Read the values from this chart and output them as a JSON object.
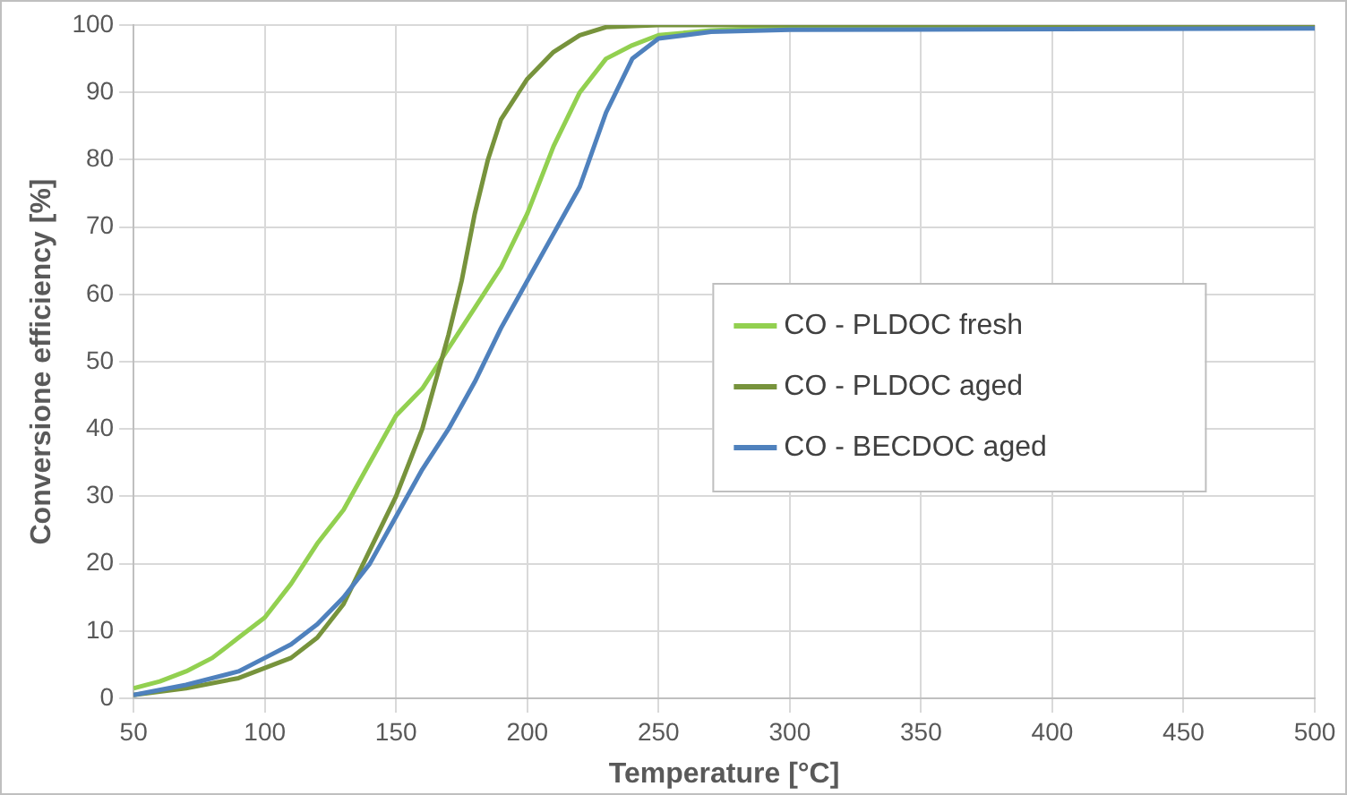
{
  "chart_data": {
    "type": "line",
    "xlabel": "Temperature [°C]",
    "ylabel": "Conversione efficiency [%]",
    "xlim": [
      50,
      500
    ],
    "ylim": [
      0,
      100
    ],
    "xticks": [
      50,
      100,
      150,
      200,
      250,
      300,
      350,
      400,
      450,
      500
    ],
    "yticks": [
      0,
      10,
      20,
      30,
      40,
      50,
      60,
      70,
      80,
      90,
      100
    ],
    "grid": true,
    "legend": "center right",
    "marker": "none",
    "line_style": "solid",
    "series": [
      {
        "name": "CO - PLDOC fresh",
        "color": "#92d050",
        "x": [
          50,
          60,
          70,
          80,
          90,
          100,
          110,
          120,
          130,
          140,
          150,
          160,
          170,
          180,
          190,
          200,
          210,
          220,
          230,
          240,
          250,
          270,
          300,
          500
        ],
        "values": [
          1.5,
          2.5,
          4,
          6,
          9,
          12,
          17,
          23,
          28,
          35,
          42,
          46,
          52,
          58,
          64,
          72,
          82,
          90,
          95,
          97,
          98.5,
          99.2,
          99.7,
          99.8
        ]
      },
      {
        "name": "CO - PLDOC aged",
        "color": "#77933c",
        "x": [
          50,
          70,
          90,
          100,
          110,
          120,
          130,
          140,
          150,
          160,
          170,
          175,
          180,
          185,
          190,
          200,
          210,
          220,
          230,
          250,
          500
        ],
        "values": [
          0.5,
          1.5,
          3,
          4.5,
          6,
          9,
          14,
          22,
          30,
          40,
          54,
          62,
          72,
          80,
          86,
          92,
          96,
          98.5,
          99.7,
          100,
          100
        ]
      },
      {
        "name": "CO - BECDOC aged",
        "color": "#4f81bd",
        "x": [
          50,
          70,
          90,
          100,
          110,
          120,
          130,
          140,
          150,
          160,
          170,
          180,
          190,
          200,
          210,
          220,
          230,
          240,
          250,
          270,
          300,
          500
        ],
        "values": [
          0.5,
          2,
          4,
          6,
          8,
          11,
          15,
          20,
          27,
          34,
          40,
          47,
          55,
          62,
          69,
          76,
          87,
          95,
          98,
          99,
          99.3,
          99.5
        ]
      }
    ]
  }
}
